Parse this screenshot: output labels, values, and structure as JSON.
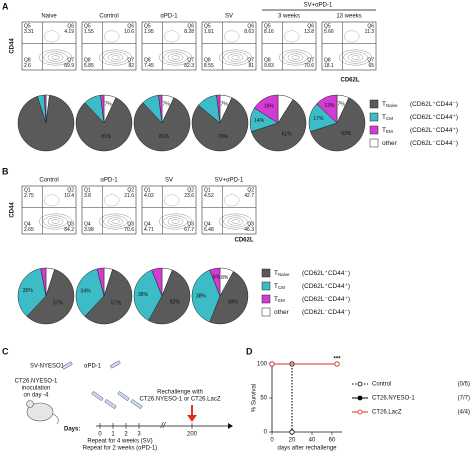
{
  "panel_labels": [
    "A",
    "B",
    "C",
    "D"
  ],
  "panel_a": {
    "titles": [
      "Naive",
      "Control",
      "αPD-1",
      "SV"
    ],
    "combo_title": "SV+αPD-1",
    "combo_subtitles": [
      "3 weeks",
      "13 weeks"
    ],
    "y_axis": "CD44",
    "x_axis": "CD62L",
    "quadrant_names": [
      "Q5",
      "Q6",
      "Q8",
      "Q7"
    ],
    "plots": [
      [
        3.31,
        4.19,
        2.6,
        89.9
      ],
      [
        1.55,
        10.6,
        5.85,
        82.0
      ],
      [
        1.95,
        8.28,
        7.45,
        82.3
      ],
      [
        1.81,
        8.63,
        8.55,
        81.0
      ],
      [
        8.16,
        13.8,
        9.83,
        70.6
      ],
      [
        5.66,
        11.3,
        18.1,
        65.0
      ]
    ]
  },
  "panel_b": {
    "titles": [
      "Control",
      "αPD-1",
      "SV",
      "SV+αPD-1"
    ],
    "y_axis": "CD44",
    "x_axis": "CD62L",
    "quadrant_names": [
      "Q1",
      "Q2",
      "Q4",
      "Q3"
    ],
    "plots": [
      [
        2.75,
        10.4,
        2.65,
        84.2
      ],
      [
        3.8,
        21.6,
        3.98,
        70.6
      ],
      [
        4.02,
        23.6,
        4.71,
        67.7
      ],
      [
        4.52,
        42.7,
        6.48,
        46.3
      ]
    ]
  },
  "pie_legend": [
    {
      "symbol": "T",
      "subscript": "Naive",
      "phenotype": "(CD62L⁺CD44⁻)",
      "color": "#5a5a5a"
    },
    {
      "symbol": "T",
      "subscript": "CM",
      "phenotype": "(CD62L⁺CD44⁺)",
      "color": "#3cbcc6"
    },
    {
      "symbol": "T",
      "subscript": "EM",
      "phenotype": "(CD62L⁻CD44⁺)",
      "color": "#d43bd4"
    },
    {
      "symbol": "other",
      "phenotype": "(CD62L⁻CD44⁻)",
      "color": "#ffffff"
    }
  ],
  "chart_data": [
    {
      "type": "pie",
      "values": [
        93,
        4,
        1,
        2
      ],
      "value_labels": [
        null,
        null,
        null,
        null
      ]
    },
    {
      "type": "pie",
      "values": [
        81,
        10,
        2,
        7
      ],
      "value_labels": [
        "81%",
        null,
        null,
        "7%"
      ]
    },
    {
      "type": "pie",
      "values": [
        81,
        10,
        2,
        7
      ],
      "value_labels": [
        "81%",
        null,
        null,
        "7%"
      ]
    },
    {
      "type": "pie",
      "values": [
        79,
        12,
        2,
        7
      ],
      "value_labels": [
        "79%",
        null,
        null,
        "7%"
      ]
    },
    {
      "type": "pie",
      "values": [
        61,
        14,
        16,
        9
      ],
      "value_labels": [
        "61%",
        "14%",
        "16%",
        null
      ]
    },
    {
      "type": "pie",
      "values": [
        63,
        17,
        13,
        7
      ],
      "value_labels": [
        "63%",
        "17%",
        "13%",
        "7%"
      ]
    },
    {
      "type": "pie",
      "values": [
        57,
        35,
        3,
        5
      ],
      "value_labels": [
        "57%",
        "35%",
        null,
        null
      ]
    },
    {
      "type": "pie",
      "values": [
        57,
        34,
        4,
        5
      ],
      "value_labels": [
        "57%",
        "34%",
        null,
        null
      ]
    },
    {
      "type": "pie",
      "values": [
        52,
        36,
        6,
        6
      ],
      "value_labels": [
        "52%",
        "36%",
        null,
        null
      ]
    },
    {
      "type": "pie",
      "values": [
        48,
        38,
        6,
        8
      ],
      "value_labels": [
        "48%",
        "38%",
        "6%",
        "8%"
      ]
    },
    {
      "type": "line",
      "x_label": "days after rechallenge",
      "y_label": "% Survival",
      "xlim": [
        0,
        70
      ],
      "ylim": [
        0,
        100
      ],
      "xticks": [
        0,
        20,
        40,
        60
      ],
      "yticks": [
        0,
        50,
        100
      ],
      "annotation": "***",
      "series": [
        {
          "name": "Control",
          "n": "(0/5)",
          "color": "#000000",
          "dash": "dotted",
          "marker": "open",
          "x": [
            0,
            20,
            20
          ],
          "values": [
            100,
            100,
            0
          ]
        },
        {
          "name": "CT26.NYESO-1",
          "n": "(7/7)",
          "color": "#000000",
          "dash": "solid",
          "marker": "filled",
          "x": [
            0,
            65
          ],
          "values": [
            100,
            100
          ]
        },
        {
          "name": "CT26.LacZ",
          "n": "(4/4)",
          "color": "#e0301e",
          "dash": "solid",
          "marker": "open",
          "x": [
            0,
            65
          ],
          "values": [
            100,
            100
          ]
        }
      ]
    }
  ],
  "panel_c": {
    "sv_label": "SV-NYESO1",
    "pd1_label": "αPD-1",
    "inoculation": [
      "CT26.NYESO-1",
      "inoculation",
      "on day -4"
    ],
    "rechallenge": [
      "Rechallenge with",
      "CT26.NYESO-1 or CT26.LacZ"
    ],
    "days_label": "Days:",
    "days": [
      0,
      1,
      2,
      3,
      200
    ],
    "repeat": [
      "Repeat for 4 weeks (SV)",
      "Repeat for 2 weeks (αPD-1)"
    ]
  }
}
